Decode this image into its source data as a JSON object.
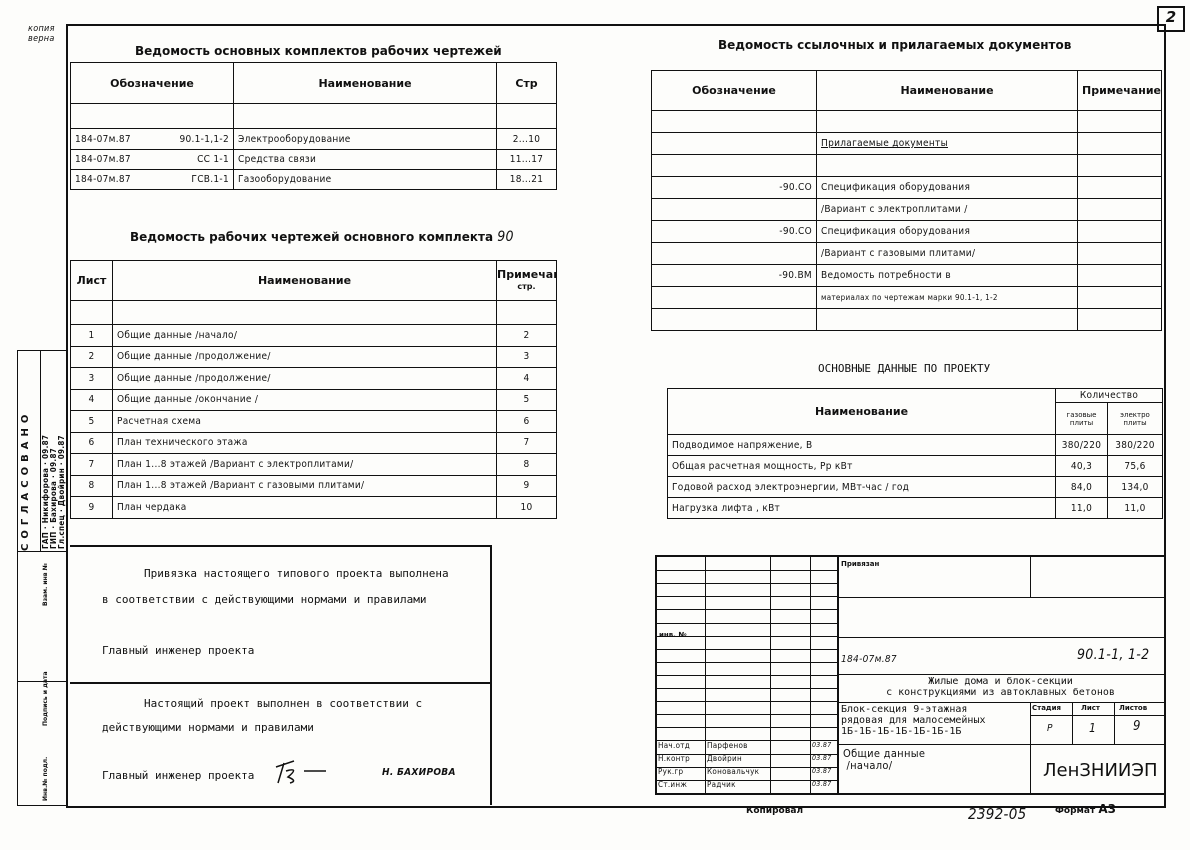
{
  "sheet_number": "2",
  "stamp_note": "копия верна",
  "main_sets": {
    "title": "Ведомость основных комплектов рабочих чертежей",
    "headers": [
      "Обозначение",
      "Наименование",
      "Стр"
    ],
    "rows": [
      {
        "code": "184-07м.87",
        "mark": "90.1-1,1-2",
        "name": "Электрооборудование",
        "pages": "2...10"
      },
      {
        "code": "184-07м.87",
        "mark": "СС 1-1",
        "name": "Средства связи",
        "pages": "11...17"
      },
      {
        "code": "184-07м.87",
        "mark": "ГСВ.1-1",
        "name": "Газооборудование",
        "pages": "18...21"
      }
    ]
  },
  "ref_docs": {
    "title": "Ведомость ссылочных и прилагаемых документов",
    "headers": [
      "Обозначение",
      "Наименование",
      "Примечание"
    ],
    "rows": [
      {
        "code": "",
        "name": ""
      },
      {
        "code": "",
        "name": "Прилагаемые документы"
      },
      {
        "code": "",
        "name": ""
      },
      {
        "code": "-90.СО",
        "name": "Спецификация оборудования"
      },
      {
        "code": "",
        "name": "/Вариант с электроплитами /"
      },
      {
        "code": "-90.СО",
        "name": "Спецификация оборудования"
      },
      {
        "code": "",
        "name": "/Вариант с газовыми плитами/"
      },
      {
        "code": "-90.ВМ",
        "name": "Ведомость потребности в"
      },
      {
        "code": "",
        "name": "материалах по чертежам марки 90.1-1, 1-2"
      },
      {
        "code": "",
        "name": ""
      }
    ]
  },
  "drawings": {
    "title": "Ведомость рабочих чертежей основного комплекта",
    "title_mark": "90",
    "headers": [
      "Лист",
      "Наименование",
      "Примечание",
      "стр."
    ],
    "rows": [
      {
        "sheet": "1",
        "name": "Общие данные /начало/",
        "page": "2"
      },
      {
        "sheet": "2",
        "name": "Общие данные /продолжение/",
        "page": "3"
      },
      {
        "sheet": "3",
        "name": "Общие данные /продолжение/",
        "page": "4"
      },
      {
        "sheet": "4",
        "name": "Общие данные /окончание /",
        "page": "5"
      },
      {
        "sheet": "5",
        "name": "Расчетная схема",
        "page": "6"
      },
      {
        "sheet": "6",
        "name": "План технического этажа",
        "page": "7"
      },
      {
        "sheet": "7",
        "name": "План 1...8   этажей /Вариант с электроплитами/",
        "page": "8"
      },
      {
        "sheet": "8",
        "name": "План 1...8   этажей /Вариант с газовыми плитами/",
        "page": "9"
      },
      {
        "sheet": "9",
        "name": "План чердака",
        "page": "10"
      }
    ]
  },
  "project_data": {
    "title": "ОСНОВНЫЕ ДАННЫЕ ПО ПРОЕКТУ",
    "headers": {
      "name": "Наименование",
      "qty": "Количество",
      "gas": "газовые плиты",
      "electric": "электро плиты"
    },
    "rows": [
      {
        "name": "Подводимое напряжение, В",
        "gas": "380/220",
        "electric": "380/220"
      },
      {
        "name": "Общая расчетная мощность, Рр кВт",
        "gas": "40,3",
        "electric": "75,6"
      },
      {
        "name": "Годовой расход электроэнергии, МВт-час / год",
        "gas": "84,0",
        "electric": "134,0"
      },
      {
        "name": "Нагрузка лифта , кВт",
        "gas": "11,0",
        "electric": "11,0"
      }
    ]
  },
  "notes": {
    "binding_line1": "Привязка настоящего типового проекта выполнена",
    "binding_line2": "в соответствии с действующими нормами и правилами",
    "chief1": "Главный инженер проекта",
    "done_line1": "Настоящий проект выполнен в соответствии с",
    "done_line2": "действующими нормами и правилами",
    "chief2": "Главный инженер проекта",
    "chief2_name": "Н. БАХИРОВА"
  },
  "side_stamp": {
    "agreed": "СОГЛАСОВАНО",
    "roles": [
      "ГАП",
      "ГИП",
      "Гл.спец"
    ],
    "names": [
      "Никифорова",
      "Бахирова",
      "Двойрин"
    ],
    "dates": [
      "09.87",
      "09.87",
      "09.87"
    ],
    "fields": [
      "Взам. инв №",
      "Подпись и дата",
      "Инв.№ подл."
    ]
  },
  "title_block": {
    "bound": "Привязан",
    "inv": "инв. №",
    "code": "184-07м.87",
    "mark": "90.1-1, 1-2",
    "project": "Жилые дома и блок-секции",
    "project2": "с конструкциями из автоклавных бетонов",
    "object1": "Блок-секция 9-этажная",
    "object2": "рядовая для малосемейных",
    "object3": "1Б-1Б-1Б-1Б-1Б-1Б-1Б",
    "stage_label": "Стадия",
    "sheet_label": "Лист",
    "sheets_label": "Листов",
    "stage": "Р",
    "sheet": "1",
    "sheets": "9",
    "drawing_title1": "Общие данные",
    "drawing_title2": "/начало/",
    "org": "ЛенЗНИИЭП",
    "staff": [
      {
        "role": "Нач.отд",
        "name": "Парфенов",
        "date": "03.87"
      },
      {
        "role": "Н.контр",
        "name": "Двойрин",
        "date": "03.87"
      },
      {
        "role": "Рук.гр",
        "name": "Коновальчук",
        "date": "03.87"
      },
      {
        "role": "Ст.инж",
        "name": "Радчик",
        "date": "03.87"
      }
    ]
  },
  "footer": {
    "copied": "Копировал",
    "number": "2392-05",
    "format_label": "Формат",
    "format": "А3"
  }
}
